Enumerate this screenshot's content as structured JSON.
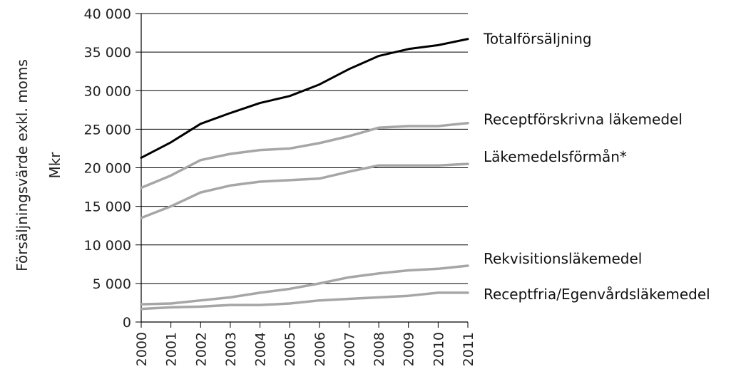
{
  "chart_data": {
    "type": "line",
    "title": "",
    "xlabel": "",
    "ylabel": "Försäljningsvärde exkl. moms",
    "ylabel_line2": "Mkr",
    "ylim": [
      0,
      40000
    ],
    "yticks": [
      0,
      5000,
      10000,
      15000,
      20000,
      25000,
      30000,
      35000,
      40000
    ],
    "ytick_labels": [
      "0",
      "5 000",
      "10 000",
      "15 000",
      "20 000",
      "25 000",
      "30 000",
      "35 000",
      "40 000"
    ],
    "grid": "horizontal",
    "legend": "direct labels at right end of each line",
    "x": [
      "2000",
      "2001",
      "2002",
      "2003",
      "2004",
      "2005",
      "2006",
      "2007",
      "2008",
      "2009",
      "2010",
      "2011"
    ],
    "series": [
      {
        "name": "Totalförsäljning",
        "color": "#000000",
        "values": [
          21300,
          23300,
          25700,
          27100,
          28400,
          29300,
          30800,
          32800,
          34500,
          35400,
          35900,
          36700
        ]
      },
      {
        "name": "Receptförskrivna läkemedel",
        "color": "#a6a6a6",
        "values": [
          17400,
          19000,
          21000,
          21800,
          22300,
          22500,
          23200,
          24100,
          25200,
          25400,
          25400,
          25800
        ]
      },
      {
        "name": "Läkemedelsförmån*",
        "color": "#a6a6a6",
        "values": [
          13500,
          15000,
          16800,
          17700,
          18200,
          18400,
          18600,
          19500,
          20300,
          20300,
          20300,
          20500
        ]
      },
      {
        "name": "Rekvisitionsläkemedel",
        "color": "#a6a6a6",
        "values": [
          2300,
          2400,
          2800,
          3200,
          3800,
          4300,
          5000,
          5800,
          6300,
          6700,
          6900,
          7300
        ]
      },
      {
        "name": "Receptfria/Egenvårdsläkemedel",
        "color": "#a6a6a6",
        "values": [
          1700,
          1900,
          2000,
          2200,
          2200,
          2400,
          2800,
          3000,
          3200,
          3400,
          3800,
          3800
        ]
      }
    ]
  }
}
